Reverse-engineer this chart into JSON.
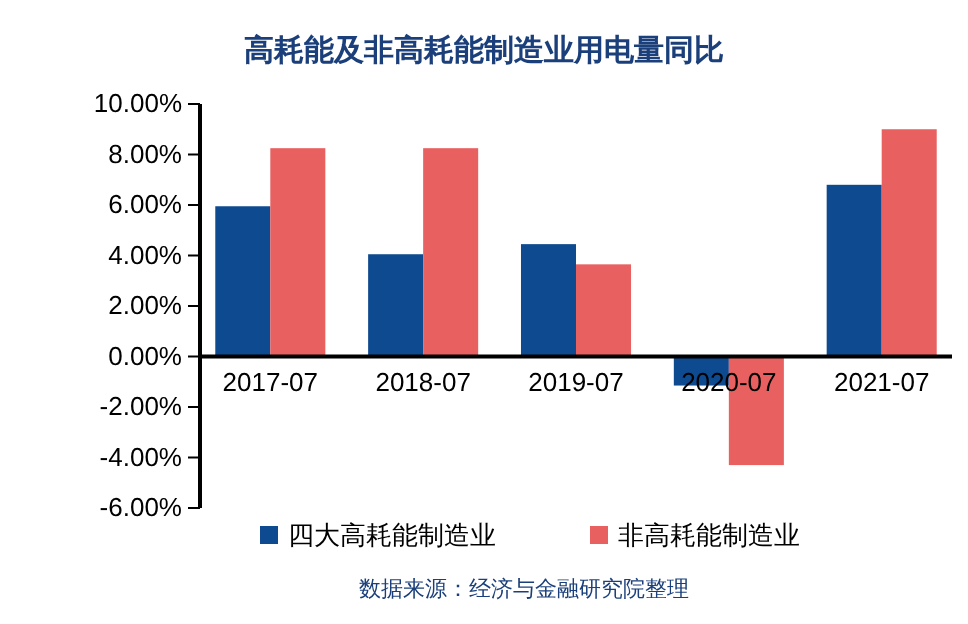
{
  "chart_data": {
    "type": "bar",
    "title": "高耗能及非高耗能制造业用电量同比",
    "categories": [
      "2017-07",
      "2018-07",
      "2019-07",
      "2020-07",
      "2021-07"
    ],
    "series": [
      {
        "name": "四大高耗能制造业",
        "color": "#0d4a8f",
        "values": [
          5.95,
          4.05,
          4.45,
          -1.15,
          6.8
        ]
      },
      {
        "name": "非高耗能制造业",
        "color": "#e8605f",
        "values": [
          8.25,
          8.25,
          3.65,
          -4.3,
          9.0
        ]
      }
    ],
    "ylim": [
      -6,
      10
    ],
    "yticks": [
      {
        "value": -6,
        "label": "-6.00%"
      },
      {
        "value": -4,
        "label": "-4.00%"
      },
      {
        "value": -2,
        "label": "-2.00%"
      },
      {
        "value": 0,
        "label": "0.00%"
      },
      {
        "value": 2,
        "label": "2.00%"
      },
      {
        "value": 4,
        "label": "4.00%"
      },
      {
        "value": 6,
        "label": "6.00%"
      },
      {
        "value": 8,
        "label": "8.00%"
      },
      {
        "value": 10,
        "label": "10.00%"
      }
    ],
    "legend": "bottom",
    "annotations": [
      "数据来源：经济与金融研究院整理"
    ]
  }
}
